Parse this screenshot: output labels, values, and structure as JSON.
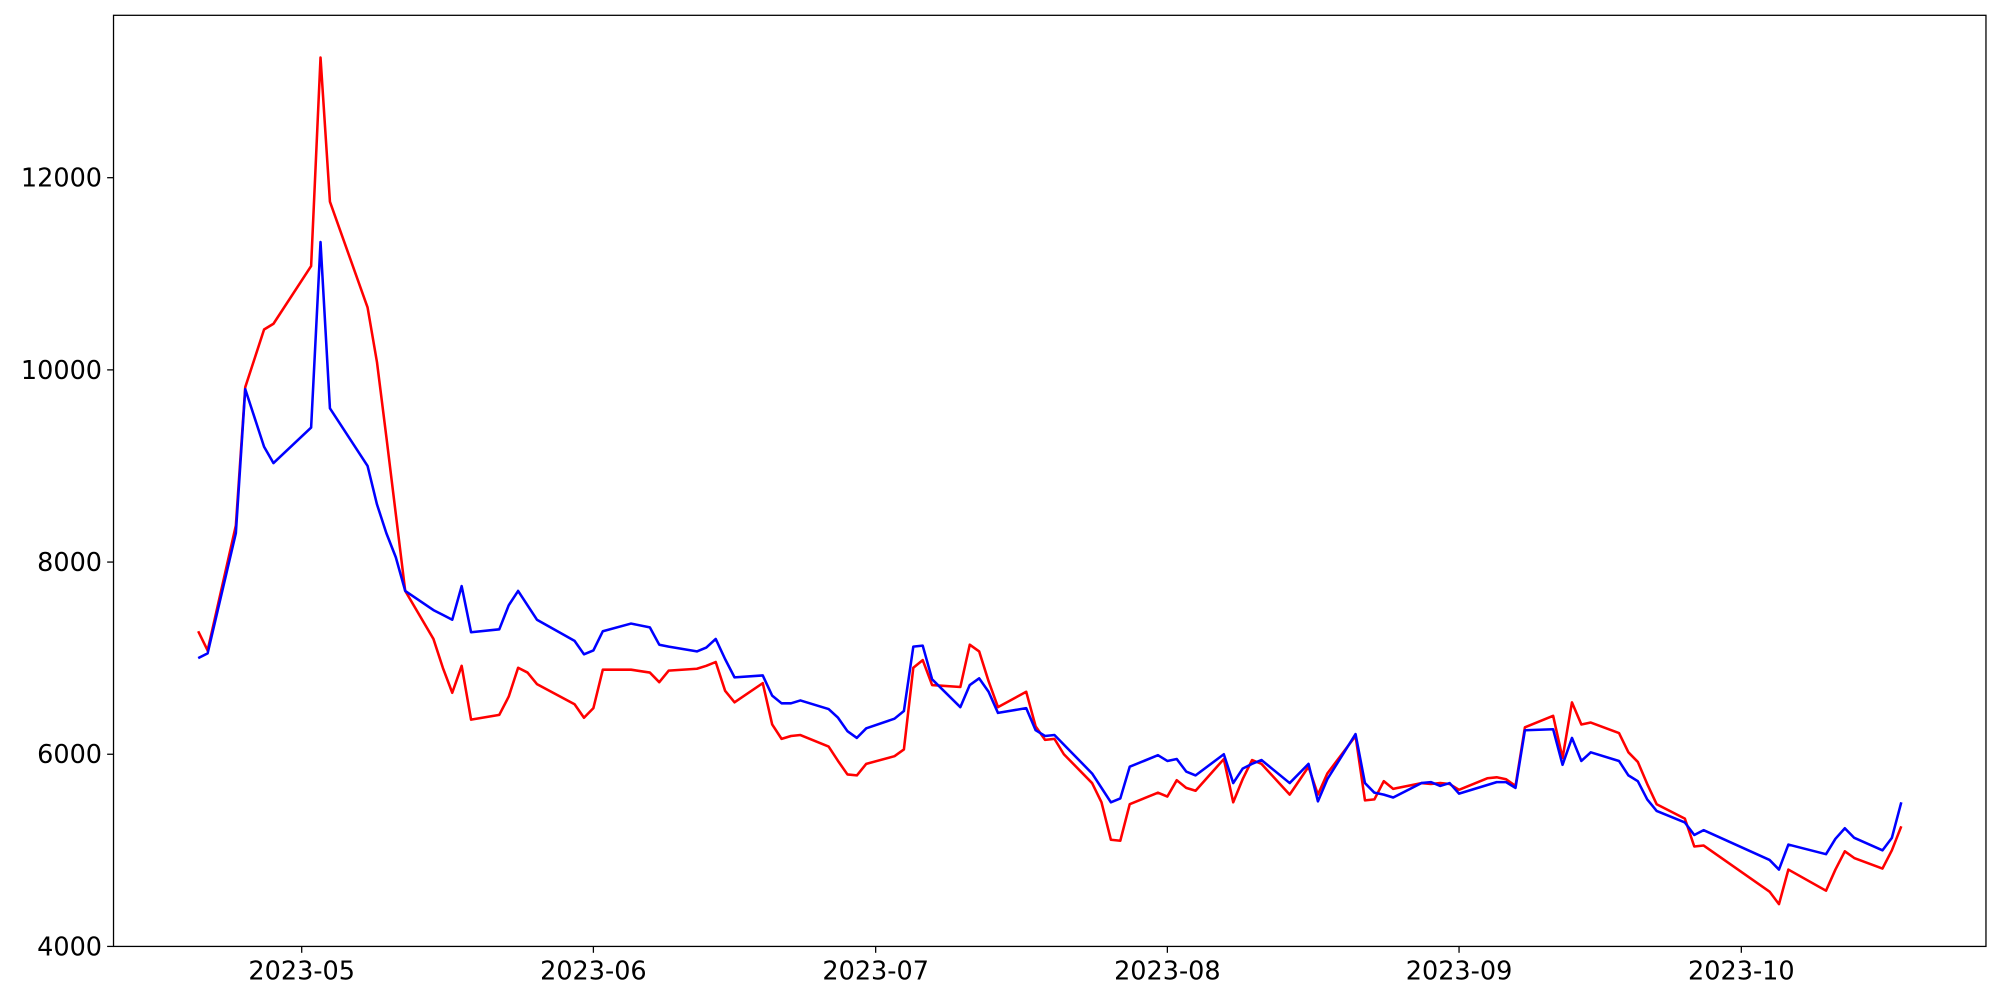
{
  "chart_data": {
    "type": "line",
    "x": [
      "2023-04-20",
      "2023-04-21",
      "2023-04-24",
      "2023-04-25",
      "2023-04-27",
      "2023-04-28",
      "2023-05-02",
      "2023-05-03",
      "2023-05-04",
      "2023-05-08",
      "2023-05-09",
      "2023-05-10",
      "2023-05-11",
      "2023-05-12",
      "2023-05-15",
      "2023-05-16",
      "2023-05-17",
      "2023-05-18",
      "2023-05-19",
      "2023-05-22",
      "2023-05-23",
      "2023-05-24",
      "2023-05-25",
      "2023-05-26",
      "2023-05-30",
      "2023-05-31",
      "2023-06-01",
      "2023-06-02",
      "2023-06-05",
      "2023-06-07",
      "2023-06-08",
      "2023-06-09",
      "2023-06-12",
      "2023-06-13",
      "2023-06-14",
      "2023-06-15",
      "2023-06-16",
      "2023-06-19",
      "2023-06-20",
      "2023-06-21",
      "2023-06-22",
      "2023-06-23",
      "2023-06-26",
      "2023-06-27",
      "2023-06-28",
      "2023-06-29",
      "2023-06-30",
      "2023-07-03",
      "2023-07-04",
      "2023-07-05",
      "2023-07-06",
      "2023-07-07",
      "2023-07-10",
      "2023-07-11",
      "2023-07-12",
      "2023-07-13",
      "2023-07-14",
      "2023-07-17",
      "2023-07-18",
      "2023-07-19",
      "2023-07-20",
      "2023-07-21",
      "2023-07-24",
      "2023-07-25",
      "2023-07-26",
      "2023-07-27",
      "2023-07-28",
      "2023-07-31",
      "2023-08-01",
      "2023-08-02",
      "2023-08-03",
      "2023-08-04",
      "2023-08-07",
      "2023-08-08",
      "2023-08-09",
      "2023-08-10",
      "2023-08-11",
      "2023-08-14",
      "2023-08-16",
      "2023-08-17",
      "2023-08-18",
      "2023-08-21",
      "2023-08-22",
      "2023-08-23",
      "2023-08-24",
      "2023-08-25",
      "2023-08-28",
      "2023-08-29",
      "2023-08-30",
      "2023-08-31",
      "2023-09-01",
      "2023-09-04",
      "2023-09-05",
      "2023-09-06",
      "2023-09-07",
      "2023-09-08",
      "2023-09-11",
      "2023-09-12",
      "2023-09-13",
      "2023-09-14",
      "2023-09-15",
      "2023-09-18",
      "2023-09-19",
      "2023-09-20",
      "2023-09-21",
      "2023-09-22",
      "2023-09-25",
      "2023-09-26",
      "2023-09-27",
      "2023-10-04",
      "2023-10-05",
      "2023-10-06",
      "2023-10-10",
      "2023-10-11",
      "2023-10-12",
      "2023-10-13",
      "2023-10-16",
      "2023-10-17",
      "2023-10-18"
    ],
    "series": [
      {
        "color": "#ff0000",
        "values": [
          7280,
          7080,
          8380,
          9820,
          10420,
          10480,
          11080,
          13250,
          11750,
          10650,
          10080,
          9300,
          8500,
          7700,
          7200,
          6900,
          6640,
          6920,
          6360,
          6410,
          6600,
          6900,
          6850,
          6730,
          6520,
          6380,
          6480,
          6880,
          6880,
          6850,
          6750,
          6870,
          6890,
          6920,
          6960,
          6660,
          6540,
          6740,
          6310,
          6160,
          6190,
          6200,
          6080,
          5930,
          5790,
          5780,
          5900,
          5980,
          6050,
          6900,
          6980,
          6720,
          6700,
          7140,
          7070,
          6760,
          6490,
          6650,
          6290,
          6150,
          6160,
          6000,
          5700,
          5500,
          5110,
          5100,
          5480,
          5600,
          5560,
          5730,
          5650,
          5620,
          5950,
          5500,
          5740,
          5940,
          5900,
          5580,
          5870,
          5580,
          5800,
          6190,
          5520,
          5530,
          5720,
          5640,
          5700,
          5690,
          5700,
          5690,
          5630,
          5750,
          5760,
          5740,
          5670,
          6280,
          6400,
          5960,
          6540,
          6310,
          6330,
          6220,
          6020,
          5920,
          5690,
          5480,
          5330,
          5040,
          5050,
          4570,
          4440,
          4800,
          4580,
          4800,
          4990,
          4920,
          4810,
          5000,
          5250
        ]
      },
      {
        "color": "#0000ff",
        "values": [
          7000,
          7050,
          8300,
          9800,
          9200,
          9030,
          9400,
          11330,
          9600,
          9000,
          8600,
          8300,
          8050,
          7700,
          7500,
          7450,
          7400,
          7750,
          7270,
          7300,
          7550,
          7700,
          7550,
          7400,
          7180,
          7040,
          7080,
          7280,
          7360,
          7320,
          7140,
          7120,
          7070,
          7110,
          7200,
          6990,
          6800,
          6820,
          6610,
          6530,
          6530,
          6560,
          6470,
          6380,
          6240,
          6170,
          6270,
          6370,
          6450,
          7120,
          7130,
          6780,
          6490,
          6720,
          6790,
          6650,
          6430,
          6480,
          6250,
          6190,
          6200,
          6100,
          5800,
          5650,
          5500,
          5540,
          5870,
          5990,
          5930,
          5950,
          5820,
          5780,
          6000,
          5700,
          5850,
          5900,
          5940,
          5700,
          5900,
          5510,
          5740,
          6210,
          5700,
          5600,
          5580,
          5550,
          5700,
          5710,
          5670,
          5700,
          5590,
          5680,
          5710,
          5710,
          5650,
          6250,
          6260,
          5890,
          6170,
          5930,
          6020,
          5930,
          5780,
          5720,
          5530,
          5410,
          5290,
          5160,
          5210,
          4900,
          4800,
          5060,
          4960,
          5120,
          5230,
          5130,
          5000,
          5130,
          5500
        ]
      }
    ],
    "xlim": [
      "2023-04-11",
      "2023-10-27"
    ],
    "xticks": [
      {
        "value": "2023-05-01",
        "label": "2023-05"
      },
      {
        "value": "2023-06-01",
        "label": "2023-06"
      },
      {
        "value": "2023-07-01",
        "label": "2023-07"
      },
      {
        "value": "2023-08-01",
        "label": "2023-08"
      },
      {
        "value": "2023-09-01",
        "label": "2023-09"
      },
      {
        "value": "2023-10-01",
        "label": "2023-10"
      }
    ],
    "ylim": [
      4000,
      13690
    ],
    "yticks": [
      4000,
      6000,
      8000,
      10000,
      12000
    ],
    "grid": false
  }
}
